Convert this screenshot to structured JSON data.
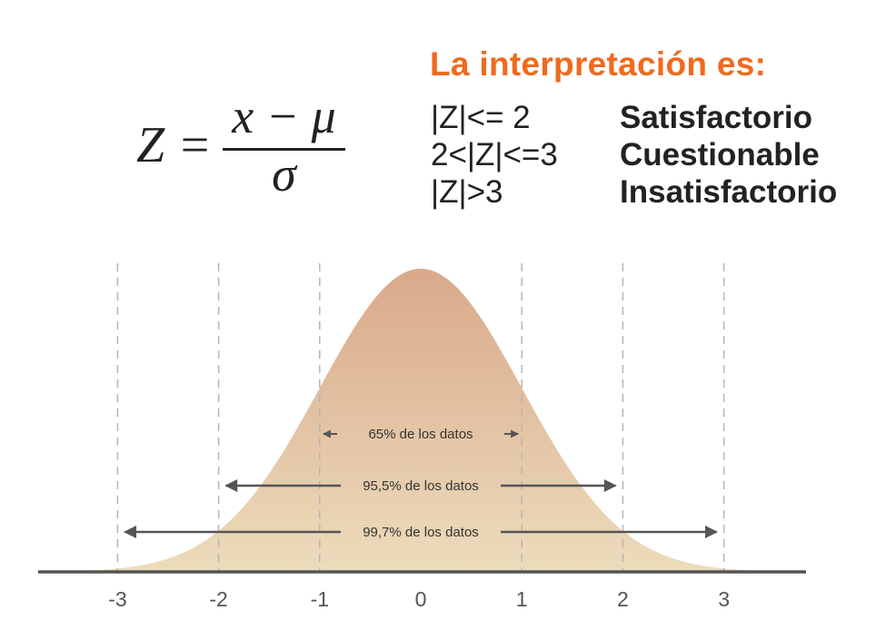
{
  "formula": {
    "lhs": "Z =",
    "numerator": "x − μ",
    "denominator": "σ"
  },
  "interpretation": {
    "title": "La interpretación es:",
    "rules": [
      {
        "condition": "|Z|<= 2",
        "result": "Satisfactorio"
      },
      {
        "condition": "2<|Z|<=3",
        "result": "Cuestionable"
      },
      {
        "condition": "|Z|>3",
        "result": "Insatisfactorio"
      }
    ]
  },
  "colors": {
    "title": "#f06a1d",
    "curve_top": "#d9a98a",
    "curve_bottom": "#ecdcbc",
    "axis": "#555555",
    "arrow": "#555555",
    "guide": "#b5b5b5"
  },
  "chart_data": {
    "type": "area",
    "x_ticks": [
      -3,
      -2,
      -1,
      0,
      1,
      2,
      3
    ],
    "x_tick_labels": [
      "-3",
      "-2",
      "-1",
      "0",
      "1",
      "2",
      "3"
    ],
    "xlim": [
      -3.8,
      3.8
    ],
    "guides_at": [
      -3,
      -2,
      -1,
      1,
      2,
      3
    ],
    "intervals": [
      {
        "from": -1,
        "to": 1,
        "label": "65% de los datos"
      },
      {
        "from": -2,
        "to": 2,
        "label": "95,5% de los datos"
      },
      {
        "from": -3,
        "to": 3,
        "label": "99,7% de los datos"
      }
    ]
  }
}
